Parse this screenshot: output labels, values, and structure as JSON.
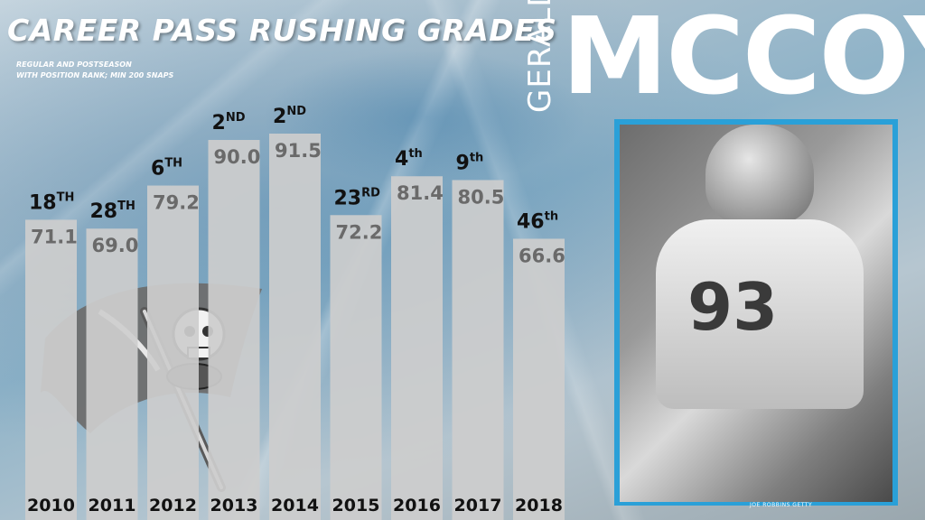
{
  "title": "CAREER PASS RUSHING GRADES",
  "subtitle_lines": [
    "REGULAR AND POSTSEASON",
    "WITH POSITION RANK; MIN 200 SNAPS"
  ],
  "player": {
    "first_name": "GERALD",
    "last_name": "MCCOY",
    "jersey_number": "93"
  },
  "photo_credit": "JOE ROBBINS GETTY",
  "colors": {
    "background": "#a9bfcd",
    "bar": "#cdcdcd",
    "frame_accent": "#2aa0d8",
    "logo_gray": "#6e6e6e"
  },
  "icons": {
    "logo": "buccaneers-flag-logo"
  },
  "chart_data": {
    "type": "bar",
    "title": "CAREER PASS RUSHING GRADES",
    "categories": [
      "2010",
      "2011",
      "2012",
      "2013",
      "2014",
      "2015",
      "2016",
      "2017",
      "2018"
    ],
    "values": [
      71.1,
      69.0,
      79.2,
      90.0,
      91.5,
      72.2,
      81.4,
      80.5,
      66.6
    ],
    "value_labels": [
      "71.1",
      "69.0",
      "79.2",
      "90.0",
      "91.5",
      "72.2",
      "81.4",
      "80.5",
      "66.6"
    ],
    "ranks": [
      {
        "num": "18",
        "suffix": "TH"
      },
      {
        "num": "28",
        "suffix": "TH"
      },
      {
        "num": "6",
        "suffix": "TH"
      },
      {
        "num": "2",
        "suffix": "ND"
      },
      {
        "num": "2",
        "suffix": "ND"
      },
      {
        "num": "23",
        "suffix": "RD"
      },
      {
        "num": "4",
        "suffix": "th"
      },
      {
        "num": "9",
        "suffix": "th"
      },
      {
        "num": "46",
        "suffix": "th"
      }
    ],
    "xlabel": "",
    "ylabel": "",
    "grid": false,
    "legend": "none"
  }
}
